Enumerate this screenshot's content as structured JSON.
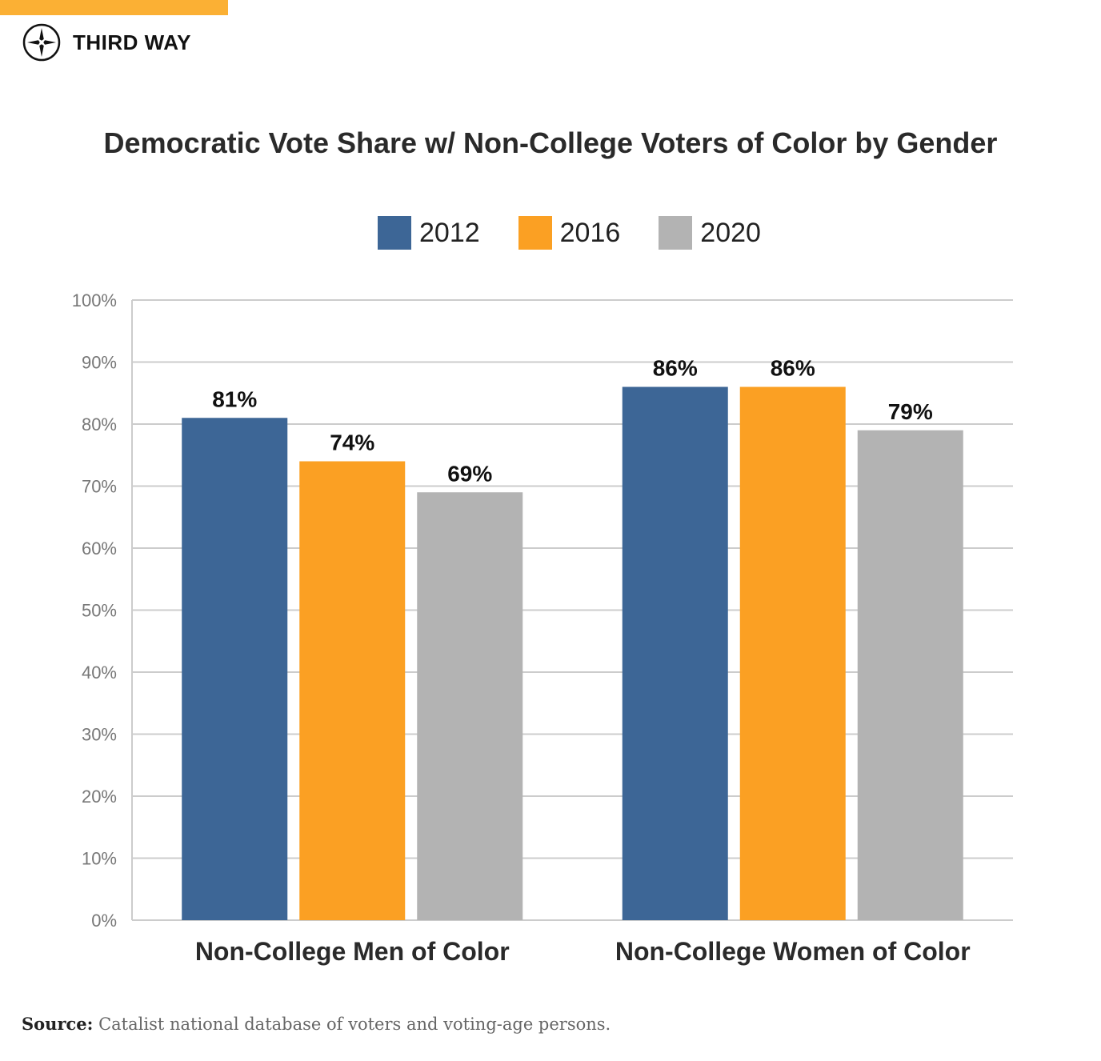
{
  "brand": {
    "name": "THIRD WAY",
    "logo_icon": "compass-icon",
    "accent": "#fbb034"
  },
  "chart_data": {
    "type": "bar",
    "title": "Democratic Vote Share w/ Non-College Voters of Color by Gender",
    "categories": [
      "Non-College Men of Color",
      "Non-College Women of Color"
    ],
    "series": [
      {
        "name": "2012",
        "color": "#3d6696",
        "values": [
          81,
          86
        ],
        "labels": [
          "81%",
          "86%"
        ]
      },
      {
        "name": "2016",
        "color": "#fba023",
        "values": [
          74,
          86
        ],
        "labels": [
          "74%",
          "86%"
        ]
      },
      {
        "name": "2020",
        "color": "#b3b3b3",
        "values": [
          69,
          79
        ],
        "labels": [
          "69%",
          "79%"
        ]
      }
    ],
    "ylim": [
      0,
      100
    ],
    "yticks": [
      "0%",
      "10%",
      "20%",
      "30%",
      "40%",
      "50%",
      "60%",
      "70%",
      "80%",
      "90%",
      "100%"
    ],
    "grid": true,
    "legend": "top-center"
  },
  "source": {
    "label": "Source:",
    "text": "Catalist national database of voters and voting-age persons."
  }
}
